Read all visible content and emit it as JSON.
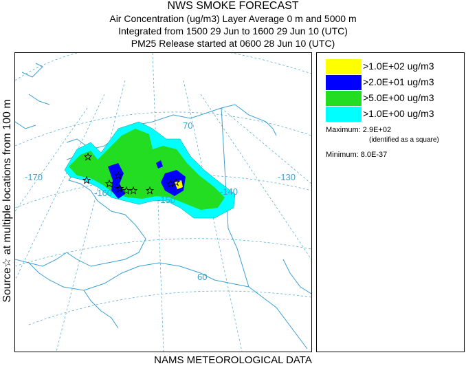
{
  "title": {
    "main": "NWS SMOKE FORECAST",
    "line2": "Air Concentration (ug/m3) Layer Average    0 m and  5000 m",
    "line3": "Integrated from 1500 29 Jun to 1600 29 Jun 10 (UTC)",
    "line4": "PM25 Release started at 0600 28 Jun 10 (UTC)"
  },
  "side_label": "Source☆  at multiple locations   from   100 m",
  "footer": "NAMS METEOROLOGICAL DATA",
  "legend": {
    "items": [
      {
        "label": ">1.0E+02 ug/m3",
        "color": "#ffff00"
      },
      {
        "label": ">2.0E+01 ug/m3",
        "color": "#0000ff"
      },
      {
        "label": ">5.0E+00 ug/m3",
        "color": "#22dd22"
      },
      {
        "label": ">1.0E+00 ug/m3",
        "color": "#00ffff"
      }
    ],
    "maximum_label": "Maximum:",
    "maximum_value": "2.9E+02",
    "maximum_note": "(identified as a square)",
    "minimum_label": "Minimum:",
    "minimum_value": "8.0E-37"
  },
  "map": {
    "longitude_labels": [
      "-170",
      "-160",
      "-150",
      "-140",
      "-130"
    ],
    "latitude_labels": [
      "70",
      "60"
    ],
    "line_color": "#3aa0c8"
  }
}
